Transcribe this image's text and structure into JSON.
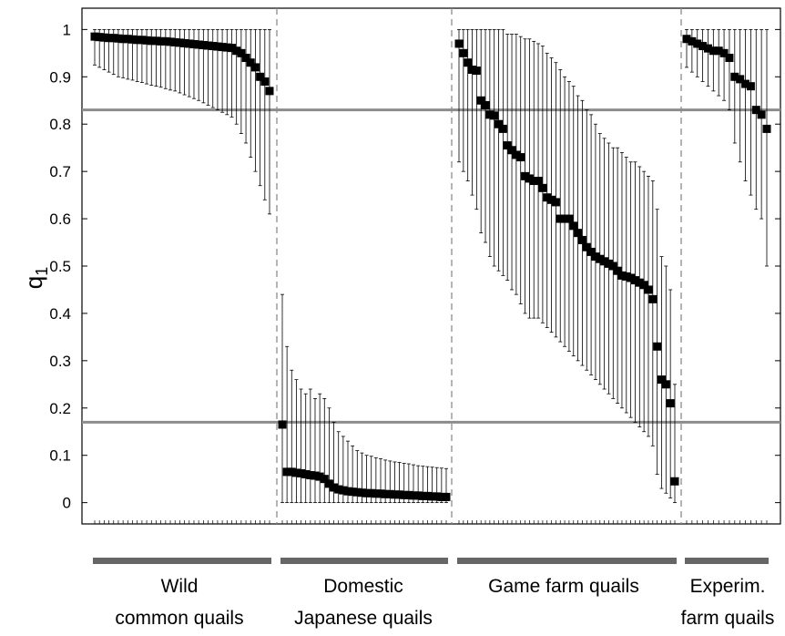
{
  "chart_data": {
    "type": "scatter",
    "ylabel_main": "q",
    "ylabel_sub": "1",
    "ylim": [
      -0.045,
      1.045
    ],
    "yticks": [
      0,
      0.1,
      0.2,
      0.3,
      0.4,
      0.5,
      0.6,
      0.7,
      0.8,
      0.9,
      1
    ],
    "ytick_labels": [
      "0",
      "0.1",
      "0.2",
      "0.3",
      "0.4",
      "0.5",
      "0.6",
      "0.7",
      "0.8",
      "0.9",
      "1"
    ],
    "reference_lines": [
      0.83,
      0.17
    ],
    "groups": [
      {
        "label_lines": [
          "Wild",
          "common quails"
        ],
        "points": [
          {
            "q": 0.985,
            "lo": 0.925,
            "hi": 1.0
          },
          {
            "q": 0.984,
            "lo": 0.92,
            "hi": 1.0
          },
          {
            "q": 0.983,
            "lo": 0.915,
            "hi": 1.0
          },
          {
            "q": 0.982,
            "lo": 0.91,
            "hi": 1.0
          },
          {
            "q": 0.982,
            "lo": 0.905,
            "hi": 1.0
          },
          {
            "q": 0.981,
            "lo": 0.9,
            "hi": 1.0
          },
          {
            "q": 0.98,
            "lo": 0.898,
            "hi": 1.0
          },
          {
            "q": 0.98,
            "lo": 0.895,
            "hi": 1.0
          },
          {
            "q": 0.979,
            "lo": 0.893,
            "hi": 1.0
          },
          {
            "q": 0.978,
            "lo": 0.89,
            "hi": 1.0
          },
          {
            "q": 0.978,
            "lo": 0.888,
            "hi": 1.0
          },
          {
            "q": 0.977,
            "lo": 0.885,
            "hi": 1.0
          },
          {
            "q": 0.976,
            "lo": 0.882,
            "hi": 1.0
          },
          {
            "q": 0.976,
            "lo": 0.88,
            "hi": 1.0
          },
          {
            "q": 0.975,
            "lo": 0.878,
            "hi": 1.0
          },
          {
            "q": 0.975,
            "lo": 0.875,
            "hi": 1.0
          },
          {
            "q": 0.974,
            "lo": 0.872,
            "hi": 1.0
          },
          {
            "q": 0.973,
            "lo": 0.87,
            "hi": 1.0
          },
          {
            "q": 0.972,
            "lo": 0.866,
            "hi": 1.0
          },
          {
            "q": 0.971,
            "lo": 0.862,
            "hi": 1.0
          },
          {
            "q": 0.97,
            "lo": 0.858,
            "hi": 1.0
          },
          {
            "q": 0.969,
            "lo": 0.854,
            "hi": 1.0
          },
          {
            "q": 0.968,
            "lo": 0.85,
            "hi": 1.0
          },
          {
            "q": 0.967,
            "lo": 0.845,
            "hi": 1.0
          },
          {
            "q": 0.966,
            "lo": 0.84,
            "hi": 1.0
          },
          {
            "q": 0.965,
            "lo": 0.835,
            "hi": 1.0
          },
          {
            "q": 0.964,
            "lo": 0.83,
            "hi": 1.0
          },
          {
            "q": 0.963,
            "lo": 0.825,
            "hi": 1.0
          },
          {
            "q": 0.962,
            "lo": 0.82,
            "hi": 1.0
          },
          {
            "q": 0.961,
            "lo": 0.815,
            "hi": 1.0
          },
          {
            "q": 0.955,
            "lo": 0.8,
            "hi": 1.0
          },
          {
            "q": 0.95,
            "lo": 0.78,
            "hi": 1.0
          },
          {
            "q": 0.94,
            "lo": 0.76,
            "hi": 1.0
          },
          {
            "q": 0.93,
            "lo": 0.73,
            "hi": 1.0
          },
          {
            "q": 0.92,
            "lo": 0.7,
            "hi": 1.0
          },
          {
            "q": 0.9,
            "lo": 0.67,
            "hi": 1.0
          },
          {
            "q": 0.89,
            "lo": 0.64,
            "hi": 1.0
          },
          {
            "q": 0.87,
            "lo": 0.61,
            "hi": 1.0
          }
        ]
      },
      {
        "label_lines": [
          "Domestic",
          "Japanese quails"
        ],
        "points": [
          {
            "q": 0.165,
            "lo": 0.0,
            "hi": 0.44
          },
          {
            "q": 0.065,
            "lo": 0.0,
            "hi": 0.33
          },
          {
            "q": 0.065,
            "lo": 0.0,
            "hi": 0.28
          },
          {
            "q": 0.063,
            "lo": 0.0,
            "hi": 0.26
          },
          {
            "q": 0.062,
            "lo": 0.0,
            "hi": 0.24
          },
          {
            "q": 0.06,
            "lo": 0.0,
            "hi": 0.23
          },
          {
            "q": 0.058,
            "lo": 0.0,
            "hi": 0.24
          },
          {
            "q": 0.057,
            "lo": 0.0,
            "hi": 0.22
          },
          {
            "q": 0.055,
            "lo": 0.0,
            "hi": 0.23
          },
          {
            "q": 0.05,
            "lo": 0.0,
            "hi": 0.22
          },
          {
            "q": 0.04,
            "lo": 0.0,
            "hi": 0.2
          },
          {
            "q": 0.032,
            "lo": 0.0,
            "hi": 0.17
          },
          {
            "q": 0.028,
            "lo": 0.0,
            "hi": 0.15
          },
          {
            "q": 0.026,
            "lo": 0.0,
            "hi": 0.14
          },
          {
            "q": 0.024,
            "lo": 0.0,
            "hi": 0.13
          },
          {
            "q": 0.023,
            "lo": 0.0,
            "hi": 0.12
          },
          {
            "q": 0.022,
            "lo": 0.0,
            "hi": 0.11
          },
          {
            "q": 0.021,
            "lo": 0.0,
            "hi": 0.105
          },
          {
            "q": 0.02,
            "lo": 0.0,
            "hi": 0.1
          },
          {
            "q": 0.02,
            "lo": 0.0,
            "hi": 0.098
          },
          {
            "q": 0.019,
            "lo": 0.0,
            "hi": 0.095
          },
          {
            "q": 0.019,
            "lo": 0.0,
            "hi": 0.093
          },
          {
            "q": 0.018,
            "lo": 0.0,
            "hi": 0.09
          },
          {
            "q": 0.018,
            "lo": 0.0,
            "hi": 0.088
          },
          {
            "q": 0.017,
            "lo": 0.0,
            "hi": 0.086
          },
          {
            "q": 0.017,
            "lo": 0.0,
            "hi": 0.085
          },
          {
            "q": 0.016,
            "lo": 0.0,
            "hi": 0.083
          },
          {
            "q": 0.016,
            "lo": 0.0,
            "hi": 0.082
          },
          {
            "q": 0.015,
            "lo": 0.0,
            "hi": 0.08
          },
          {
            "q": 0.015,
            "lo": 0.0,
            "hi": 0.078
          },
          {
            "q": 0.014,
            "lo": 0.0,
            "hi": 0.077
          },
          {
            "q": 0.014,
            "lo": 0.0,
            "hi": 0.076
          },
          {
            "q": 0.013,
            "lo": 0.0,
            "hi": 0.075
          },
          {
            "q": 0.013,
            "lo": 0.0,
            "hi": 0.074
          },
          {
            "q": 0.012,
            "lo": 0.0,
            "hi": 0.073
          },
          {
            "q": 0.012,
            "lo": 0.0,
            "hi": 0.072
          }
        ]
      },
      {
        "label_lines": [
          "Game farm quails"
        ],
        "points": [
          {
            "q": 0.97,
            "lo": 0.72,
            "hi": 1.0
          },
          {
            "q": 0.95,
            "lo": 0.7,
            "hi": 1.0
          },
          {
            "q": 0.93,
            "lo": 0.68,
            "hi": 1.0
          },
          {
            "q": 0.915,
            "lo": 0.65,
            "hi": 1.0
          },
          {
            "q": 0.913,
            "lo": 0.62,
            "hi": 1.0
          },
          {
            "q": 0.85,
            "lo": 0.57,
            "hi": 1.0
          },
          {
            "q": 0.84,
            "lo": 0.55,
            "hi": 1.0
          },
          {
            "q": 0.82,
            "lo": 0.52,
            "hi": 1.0
          },
          {
            "q": 0.818,
            "lo": 0.5,
            "hi": 1.0
          },
          {
            "q": 0.8,
            "lo": 0.49,
            "hi": 1.0
          },
          {
            "q": 0.79,
            "lo": 0.48,
            "hi": 1.0
          },
          {
            "q": 0.755,
            "lo": 0.47,
            "hi": 0.99
          },
          {
            "q": 0.745,
            "lo": 0.45,
            "hi": 0.99
          },
          {
            "q": 0.735,
            "lo": 0.44,
            "hi": 0.99
          },
          {
            "q": 0.73,
            "lo": 0.42,
            "hi": 0.985
          },
          {
            "q": 0.69,
            "lo": 0.4,
            "hi": 0.98
          },
          {
            "q": 0.685,
            "lo": 0.39,
            "hi": 0.98
          },
          {
            "q": 0.68,
            "lo": 0.39,
            "hi": 0.975
          },
          {
            "q": 0.68,
            "lo": 0.39,
            "hi": 0.97
          },
          {
            "q": 0.665,
            "lo": 0.38,
            "hi": 0.965
          },
          {
            "q": 0.645,
            "lo": 0.37,
            "hi": 0.95
          },
          {
            "q": 0.64,
            "lo": 0.36,
            "hi": 0.94
          },
          {
            "q": 0.635,
            "lo": 0.35,
            "hi": 0.93
          },
          {
            "q": 0.6,
            "lo": 0.34,
            "hi": 0.915
          },
          {
            "q": 0.6,
            "lo": 0.33,
            "hi": 0.9
          },
          {
            "q": 0.6,
            "lo": 0.32,
            "hi": 0.89
          },
          {
            "q": 0.585,
            "lo": 0.31,
            "hi": 0.88
          },
          {
            "q": 0.57,
            "lo": 0.3,
            "hi": 0.86
          },
          {
            "q": 0.555,
            "lo": 0.29,
            "hi": 0.85
          },
          {
            "q": 0.54,
            "lo": 0.28,
            "hi": 0.83
          },
          {
            "q": 0.53,
            "lo": 0.27,
            "hi": 0.82
          },
          {
            "q": 0.52,
            "lo": 0.26,
            "hi": 0.8
          },
          {
            "q": 0.515,
            "lo": 0.25,
            "hi": 0.78
          },
          {
            "q": 0.51,
            "lo": 0.24,
            "hi": 0.77
          },
          {
            "q": 0.505,
            "lo": 0.23,
            "hi": 0.76
          },
          {
            "q": 0.5,
            "lo": 0.22,
            "hi": 0.75
          },
          {
            "q": 0.49,
            "lo": 0.21,
            "hi": 0.75
          },
          {
            "q": 0.48,
            "lo": 0.2,
            "hi": 0.74
          },
          {
            "q": 0.478,
            "lo": 0.19,
            "hi": 0.73
          },
          {
            "q": 0.475,
            "lo": 0.18,
            "hi": 0.72
          },
          {
            "q": 0.47,
            "lo": 0.17,
            "hi": 0.72
          },
          {
            "q": 0.465,
            "lo": 0.16,
            "hi": 0.71
          },
          {
            "q": 0.46,
            "lo": 0.15,
            "hi": 0.7
          },
          {
            "q": 0.45,
            "lo": 0.14,
            "hi": 0.69
          },
          {
            "q": 0.43,
            "lo": 0.12,
            "hi": 0.68
          },
          {
            "q": 0.33,
            "lo": 0.06,
            "hi": 0.62
          },
          {
            "q": 0.26,
            "lo": 0.03,
            "hi": 0.52
          },
          {
            "q": 0.25,
            "lo": 0.02,
            "hi": 0.5
          },
          {
            "q": 0.21,
            "lo": 0.01,
            "hi": 0.45
          },
          {
            "q": 0.045,
            "lo": 0.0,
            "hi": 0.25
          }
        ]
      },
      {
        "label_lines": [
          "Experim.",
          "farm quails"
        ],
        "points": [
          {
            "q": 0.98,
            "lo": 0.92,
            "hi": 1.0
          },
          {
            "q": 0.975,
            "lo": 0.91,
            "hi": 1.0
          },
          {
            "q": 0.97,
            "lo": 0.9,
            "hi": 1.0
          },
          {
            "q": 0.965,
            "lo": 0.89,
            "hi": 1.0
          },
          {
            "q": 0.96,
            "lo": 0.88,
            "hi": 1.0
          },
          {
            "q": 0.955,
            "lo": 0.87,
            "hi": 1.0
          },
          {
            "q": 0.955,
            "lo": 0.86,
            "hi": 1.0
          },
          {
            "q": 0.95,
            "lo": 0.85,
            "hi": 1.0
          },
          {
            "q": 0.94,
            "lo": 0.83,
            "hi": 1.0
          },
          {
            "q": 0.9,
            "lo": 0.76,
            "hi": 1.0
          },
          {
            "q": 0.895,
            "lo": 0.72,
            "hi": 1.0
          },
          {
            "q": 0.885,
            "lo": 0.68,
            "hi": 1.0
          },
          {
            "q": 0.88,
            "lo": 0.65,
            "hi": 1.0
          },
          {
            "q": 0.83,
            "lo": 0.62,
            "hi": 1.0
          },
          {
            "q": 0.82,
            "lo": 0.6,
            "hi": 1.0
          },
          {
            "q": 0.79,
            "lo": 0.5,
            "hi": 1.0
          }
        ]
      }
    ]
  }
}
